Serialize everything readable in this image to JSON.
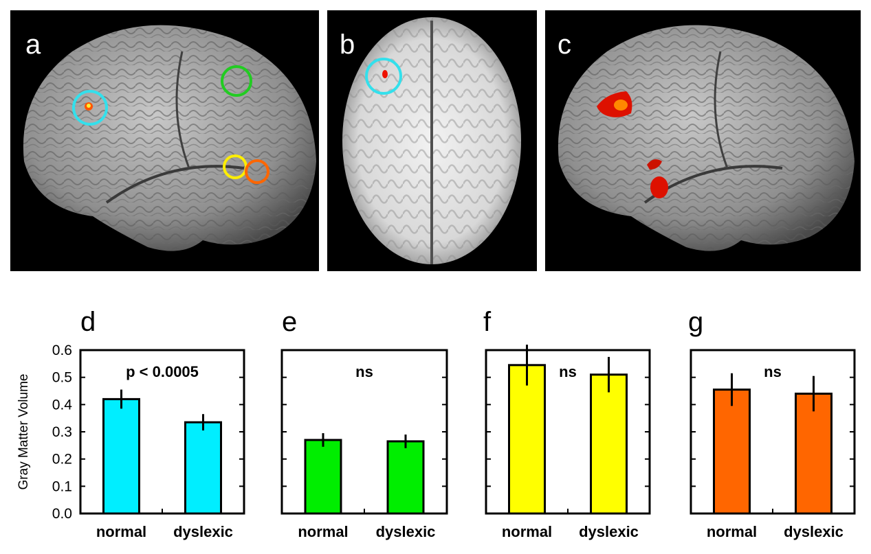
{
  "panels": [
    {
      "letter": "a",
      "view": "lateral-left-hemisphere-render",
      "markers": [
        {
          "color": "#33e0ec"
        },
        {
          "color": "#22cc22"
        },
        {
          "color": "#ffee00"
        },
        {
          "color": "#ff6600"
        }
      ]
    },
    {
      "letter": "b",
      "view": "axial-slice",
      "markers": [
        {
          "color": "#33e0ec"
        }
      ]
    },
    {
      "letter": "c",
      "view": "lateral-left-hemisphere-render-activation"
    }
  ],
  "chart_data": [
    {
      "type": "bar",
      "panel": "d",
      "categories": [
        "normal",
        "dyslexic"
      ],
      "values": [
        0.42,
        0.335
      ],
      "errors": [
        0.035,
        0.03
      ],
      "annotation": "p < 0.0005",
      "ylabel": "Gray Matter Volume",
      "ylim": [
        0,
        0.6
      ],
      "yticks": [
        "0.0",
        "0.1",
        "0.2",
        "0.3",
        "0.4",
        "0.5",
        "0.6"
      ],
      "color": "#00eeff",
      "grid": false
    },
    {
      "type": "bar",
      "panel": "e",
      "categories": [
        "normal",
        "dyslexic"
      ],
      "values": [
        0.27,
        0.265
      ],
      "errors": [
        0.025,
        0.025
      ],
      "annotation": "ns",
      "ylim": [
        0,
        0.6
      ],
      "color": "#00ee00",
      "grid": false
    },
    {
      "type": "bar",
      "panel": "f",
      "categories": [
        "normal",
        "dyslexic"
      ],
      "values": [
        0.545,
        0.51
      ],
      "errors": [
        0.075,
        0.065
      ],
      "annotation": "ns",
      "ylim": [
        0,
        0.6
      ],
      "color": "#ffff00",
      "grid": false
    },
    {
      "type": "bar",
      "panel": "g",
      "categories": [
        "normal",
        "dyslexic"
      ],
      "values": [
        0.455,
        0.44
      ],
      "errors": [
        0.06,
        0.065
      ],
      "annotation": "ns",
      "ylim": [
        0,
        0.6
      ],
      "color": "#ff6600",
      "grid": false
    }
  ]
}
